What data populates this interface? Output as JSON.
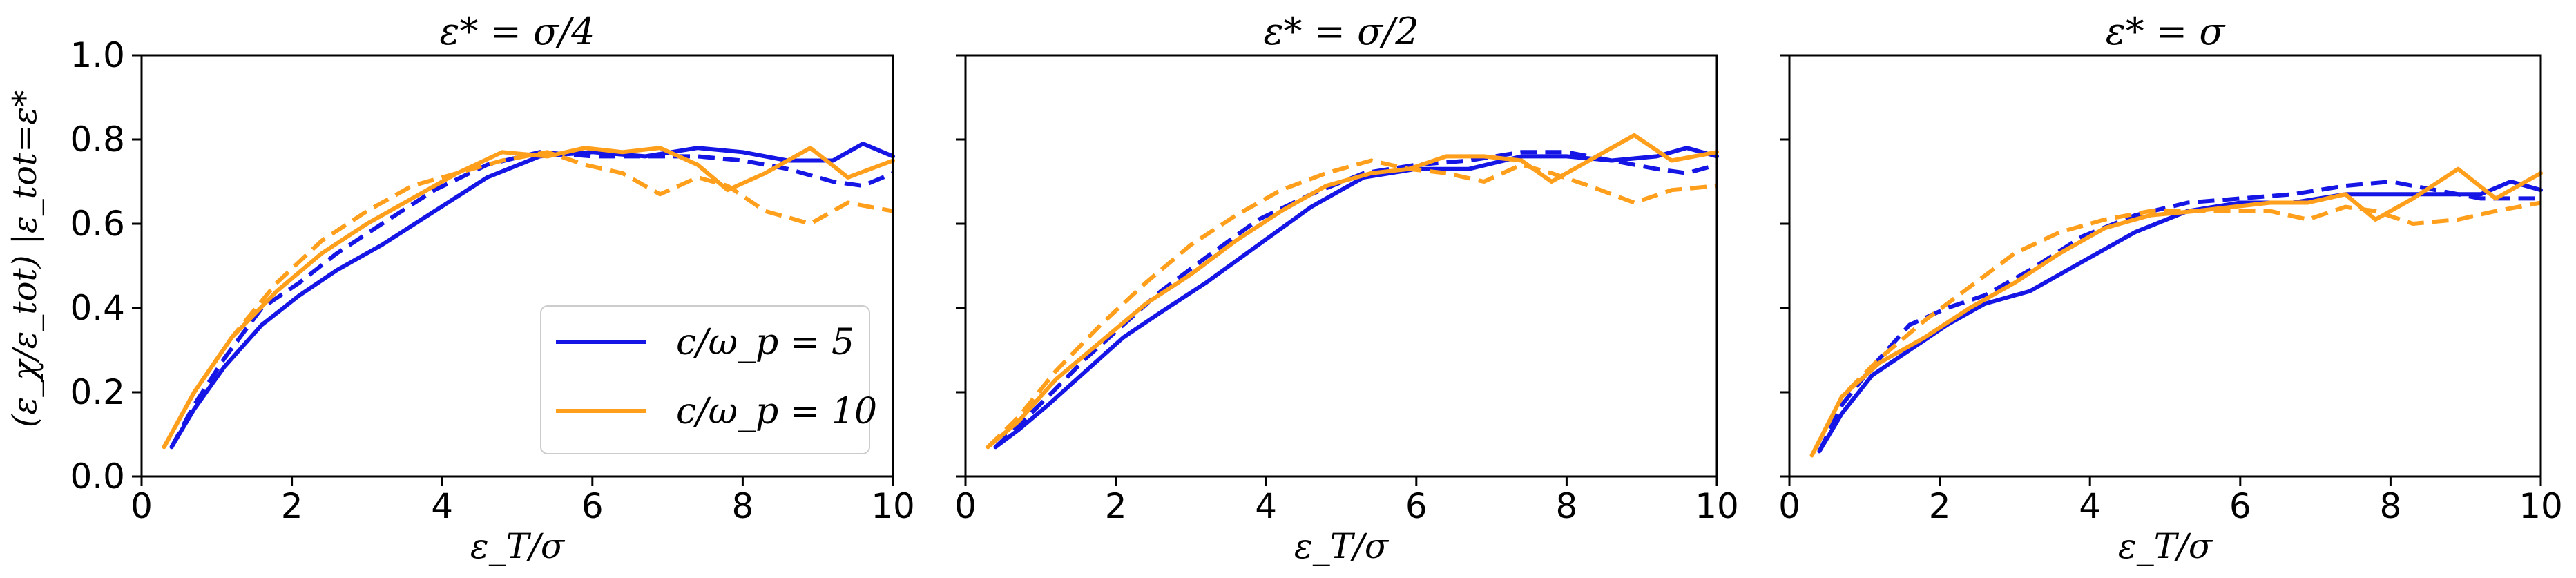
{
  "figure": {
    "ylabel": "(ε_χ/ε_tot) |ε_tot=ε*",
    "colors": {
      "c5": "#1515e6",
      "c10": "#ff9f1c",
      "axis": "#000000"
    }
  },
  "legend": {
    "placement": "lower right of first panel",
    "entries": [
      {
        "label": "c/ω_p = 5",
        "color": "#1515e6"
      },
      {
        "label": "c/ω_p = 10",
        "color": "#ff9f1c"
      }
    ]
  },
  "chart_data": [
    {
      "type": "line",
      "title": "ε* = σ/4",
      "xlabel": "ε_T/σ",
      "ylabel": "(ε_χ/ε_tot) |ε_tot=ε*",
      "xlim": [
        0,
        10
      ],
      "ylim": [
        0,
        1.0
      ],
      "xticks": [
        "0",
        "2",
        "4",
        "6",
        "8",
        "10"
      ],
      "yticks": [
        "0.0",
        "0.2",
        "0.4",
        "0.6",
        "0.8",
        "1.0"
      ],
      "grid": false,
      "series": [
        {
          "name": "c/ω_p = 5",
          "color": "#1515e6",
          "dash": false,
          "x": [
            0.4,
            0.7,
            1.1,
            1.6,
            2.1,
            2.6,
            3.2,
            3.9,
            4.6,
            5.3,
            6.0,
            6.7,
            7.4,
            8.0,
            8.6,
            9.2,
            9.6,
            10.0
          ],
          "y": [
            0.07,
            0.16,
            0.26,
            0.36,
            0.43,
            0.49,
            0.55,
            0.63,
            0.71,
            0.76,
            0.77,
            0.76,
            0.78,
            0.77,
            0.75,
            0.75,
            0.79,
            0.76
          ]
        },
        {
          "name": "c/ω_p = 5",
          "color": "#1515e6",
          "dash": true,
          "x": [
            0.4,
            0.7,
            1.1,
            1.6,
            2.1,
            2.6,
            3.2,
            3.9,
            4.6,
            5.3,
            6.0,
            6.7,
            7.4,
            8.0,
            8.6,
            9.2,
            9.6,
            10.0
          ],
          "y": [
            0.07,
            0.17,
            0.28,
            0.4,
            0.46,
            0.53,
            0.6,
            0.68,
            0.74,
            0.77,
            0.76,
            0.76,
            0.76,
            0.75,
            0.73,
            0.7,
            0.69,
            0.72
          ]
        },
        {
          "name": "c/ω_p = 10",
          "color": "#ff9f1c",
          "dash": false,
          "x": [
            0.3,
            0.7,
            1.2,
            1.8,
            2.4,
            3.0,
            3.6,
            4.2,
            4.8,
            5.4,
            5.9,
            6.4,
            6.9,
            7.4,
            7.8,
            8.3,
            8.9,
            9.4,
            10.0
          ],
          "y": [
            0.07,
            0.2,
            0.33,
            0.44,
            0.53,
            0.6,
            0.66,
            0.72,
            0.77,
            0.76,
            0.78,
            0.77,
            0.78,
            0.74,
            0.68,
            0.72,
            0.78,
            0.71,
            0.75
          ]
        },
        {
          "name": "c/ω_p = 10",
          "color": "#ff9f1c",
          "dash": true,
          "x": [
            0.3,
            0.7,
            1.2,
            1.8,
            2.4,
            3.0,
            3.6,
            4.2,
            4.8,
            5.4,
            5.9,
            6.4,
            6.9,
            7.4,
            7.8,
            8.3,
            8.9,
            9.4,
            10.0
          ],
          "y": [
            0.07,
            0.2,
            0.33,
            0.46,
            0.56,
            0.63,
            0.69,
            0.72,
            0.75,
            0.77,
            0.74,
            0.72,
            0.67,
            0.71,
            0.69,
            0.63,
            0.6,
            0.65,
            0.63
          ]
        }
      ]
    },
    {
      "type": "line",
      "title": "ε* = σ/2",
      "xlabel": "ε_T/σ",
      "ylabel": "",
      "xlim": [
        0,
        10
      ],
      "ylim": [
        0,
        1.0
      ],
      "xticks": [
        "0",
        "2",
        "4",
        "6",
        "8",
        "10"
      ],
      "yticks": [],
      "grid": false,
      "series": [
        {
          "name": "c/ω_p = 5",
          "color": "#1515e6",
          "dash": false,
          "x": [
            0.4,
            0.7,
            1.1,
            1.6,
            2.1,
            2.6,
            3.2,
            3.9,
            4.6,
            5.3,
            6.0,
            6.7,
            7.4,
            8.0,
            8.6,
            9.2,
            9.6,
            10.0
          ],
          "y": [
            0.07,
            0.11,
            0.17,
            0.25,
            0.33,
            0.39,
            0.46,
            0.55,
            0.64,
            0.71,
            0.73,
            0.73,
            0.76,
            0.76,
            0.75,
            0.76,
            0.78,
            0.76
          ]
        },
        {
          "name": "c/ω_p = 5",
          "color": "#1515e6",
          "dash": true,
          "x": [
            0.4,
            0.7,
            1.1,
            1.6,
            2.1,
            2.6,
            3.2,
            3.9,
            4.6,
            5.3,
            6.0,
            6.7,
            7.4,
            8.0,
            8.6,
            9.2,
            9.6,
            10.0
          ],
          "y": [
            0.07,
            0.12,
            0.19,
            0.28,
            0.36,
            0.44,
            0.52,
            0.61,
            0.67,
            0.72,
            0.74,
            0.75,
            0.77,
            0.77,
            0.75,
            0.73,
            0.72,
            0.74
          ]
        },
        {
          "name": "c/ω_p = 10",
          "color": "#ff9f1c",
          "dash": false,
          "x": [
            0.3,
            0.7,
            1.2,
            1.8,
            2.4,
            3.0,
            3.6,
            4.2,
            4.8,
            5.4,
            5.9,
            6.4,
            6.9,
            7.4,
            7.8,
            8.3,
            8.9,
            9.4,
            10.0
          ],
          "y": [
            0.07,
            0.13,
            0.23,
            0.32,
            0.41,
            0.48,
            0.56,
            0.63,
            0.69,
            0.72,
            0.73,
            0.76,
            0.76,
            0.75,
            0.7,
            0.75,
            0.81,
            0.75,
            0.77
          ]
        },
        {
          "name": "c/ω_p = 10",
          "color": "#ff9f1c",
          "dash": true,
          "x": [
            0.3,
            0.7,
            1.2,
            1.8,
            2.4,
            3.0,
            3.6,
            4.2,
            4.8,
            5.4,
            5.9,
            6.4,
            6.9,
            7.4,
            7.8,
            8.3,
            8.9,
            9.4,
            10.0
          ],
          "y": [
            0.07,
            0.14,
            0.25,
            0.36,
            0.46,
            0.55,
            0.62,
            0.68,
            0.72,
            0.75,
            0.73,
            0.72,
            0.7,
            0.74,
            0.72,
            0.69,
            0.65,
            0.68,
            0.69
          ]
        }
      ]
    },
    {
      "type": "line",
      "title": "ε* = σ",
      "xlabel": "ε_T/σ",
      "ylabel": "",
      "xlim": [
        0,
        10
      ],
      "ylim": [
        0,
        1.0
      ],
      "xticks": [
        "0",
        "2",
        "4",
        "6",
        "8",
        "10"
      ],
      "yticks": [],
      "grid": false,
      "series": [
        {
          "name": "c/ω_p = 5",
          "color": "#1515e6",
          "dash": false,
          "x": [
            0.4,
            0.7,
            1.1,
            1.6,
            2.1,
            2.6,
            3.2,
            3.9,
            4.6,
            5.3,
            6.0,
            6.7,
            7.4,
            8.0,
            8.6,
            9.2,
            9.6,
            10.0
          ],
          "y": [
            0.06,
            0.15,
            0.24,
            0.3,
            0.36,
            0.41,
            0.44,
            0.51,
            0.58,
            0.63,
            0.65,
            0.65,
            0.67,
            0.67,
            0.67,
            0.67,
            0.7,
            0.68
          ]
        },
        {
          "name": "c/ω_p = 5",
          "color": "#1515e6",
          "dash": true,
          "x": [
            0.4,
            0.7,
            1.1,
            1.6,
            2.1,
            2.6,
            3.2,
            3.9,
            4.6,
            5.3,
            6.0,
            6.7,
            7.4,
            8.0,
            8.6,
            9.2,
            9.6,
            10.0
          ],
          "y": [
            0.06,
            0.17,
            0.26,
            0.36,
            0.4,
            0.43,
            0.49,
            0.57,
            0.62,
            0.65,
            0.66,
            0.67,
            0.69,
            0.7,
            0.68,
            0.66,
            0.66,
            0.66
          ]
        },
        {
          "name": "c/ω_p = 10",
          "color": "#ff9f1c",
          "dash": false,
          "x": [
            0.3,
            0.7,
            1.2,
            1.8,
            2.4,
            3.0,
            3.6,
            4.2,
            4.8,
            5.4,
            5.9,
            6.4,
            6.9,
            7.4,
            7.8,
            8.3,
            8.9,
            9.4,
            10.0
          ],
          "y": [
            0.05,
            0.19,
            0.27,
            0.33,
            0.4,
            0.46,
            0.53,
            0.59,
            0.62,
            0.63,
            0.64,
            0.65,
            0.65,
            0.67,
            0.61,
            0.66,
            0.73,
            0.66,
            0.72
          ]
        },
        {
          "name": "c/ω_p = 10",
          "color": "#ff9f1c",
          "dash": true,
          "x": [
            0.3,
            0.7,
            1.2,
            1.8,
            2.4,
            3.0,
            3.6,
            4.2,
            4.8,
            5.4,
            5.9,
            6.4,
            6.9,
            7.4,
            7.8,
            8.3,
            8.9,
            9.4,
            10.0
          ],
          "y": [
            0.05,
            0.19,
            0.28,
            0.37,
            0.45,
            0.53,
            0.58,
            0.61,
            0.63,
            0.63,
            0.63,
            0.63,
            0.61,
            0.64,
            0.63,
            0.6,
            0.61,
            0.63,
            0.65
          ]
        }
      ]
    }
  ]
}
